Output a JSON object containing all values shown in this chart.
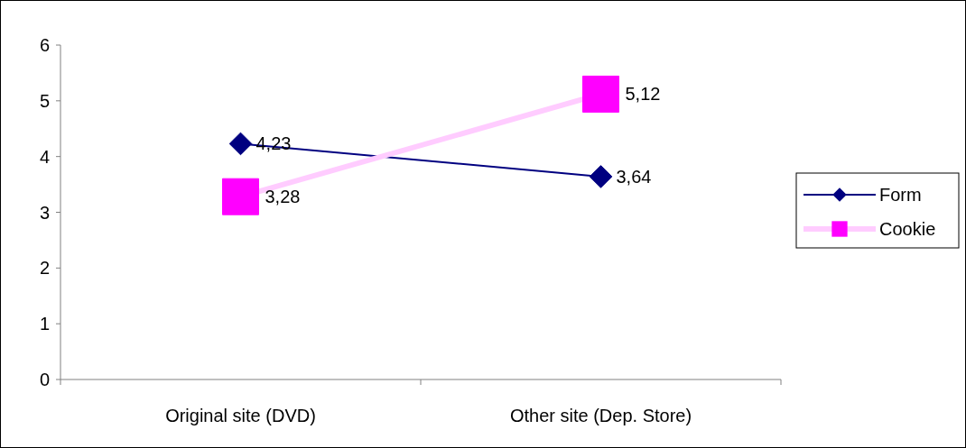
{
  "chart_data": {
    "type": "line",
    "categories": [
      "Original site (DVD)",
      "Other site (Dep. Store)"
    ],
    "series": [
      {
        "name": "Form",
        "color": "#000080",
        "colors": [
          "#000080",
          "#000080"
        ],
        "marker": "diamond",
        "values": [
          4.23,
          3.64
        ],
        "value_labels": [
          "4,23",
          "3,64"
        ]
      },
      {
        "name": "Cookie",
        "color": "#ffccff",
        "colors": [
          "#ff00ff",
          "#ff00ff"
        ],
        "marker": "square",
        "values": [
          3.28,
          5.12
        ],
        "value_labels": [
          "3,28",
          "5,12"
        ]
      }
    ],
    "ylim": [
      0,
      6
    ],
    "yticks": [
      0,
      1,
      2,
      3,
      4,
      5,
      6
    ],
    "grid": false,
    "legend": "right"
  }
}
